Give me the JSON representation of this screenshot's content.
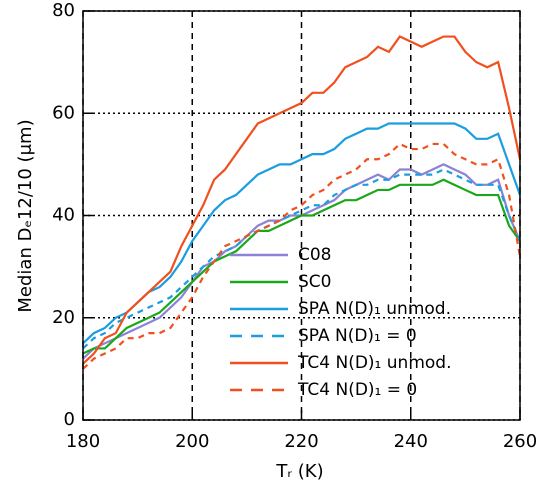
{
  "chart_data": {
    "type": "line",
    "xlabel": "Tᵣ (K)",
    "ylabel": "Median Dₑ12/10 (μm)",
    "x": [
      180,
      182,
      184,
      186,
      188,
      190,
      192,
      194,
      196,
      198,
      200,
      202,
      204,
      206,
      208,
      210,
      212,
      214,
      216,
      218,
      220,
      222,
      224,
      226,
      228,
      230,
      232,
      234,
      236,
      238,
      240,
      242,
      244,
      246,
      248,
      250,
      252,
      254,
      256,
      258,
      260
    ],
    "xlim": [
      180,
      260
    ],
    "xticks": [
      180,
      200,
      220,
      240,
      260
    ],
    "ylim": [
      0,
      80
    ],
    "yticks": [
      0,
      20,
      40,
      60,
      80
    ],
    "grid": {
      "x": "dashed",
      "y": "dotted"
    },
    "legend": "lower right",
    "series": [
      {
        "name": "C08",
        "color": "#8c82d6",
        "linestyle": "solid",
        "values": [
          12,
          14,
          15,
          16,
          17,
          18,
          19,
          20,
          22,
          24,
          27,
          30,
          31,
          33,
          34,
          36,
          38,
          39,
          39,
          40,
          40,
          41,
          42,
          43,
          45,
          46,
          47,
          48,
          47,
          49,
          49,
          48,
          49,
          50,
          49,
          48,
          46,
          46,
          47,
          40,
          35
        ]
      },
      {
        "name": "SC0",
        "color": "#1aa81a",
        "linestyle": "solid",
        "values": [
          13,
          14,
          14,
          16,
          18,
          19,
          20,
          21,
          23,
          25,
          27,
          29,
          31,
          32,
          33,
          35,
          37,
          37,
          38,
          39,
          40,
          40,
          41,
          42,
          43,
          43,
          44,
          45,
          45,
          46,
          46,
          46,
          46,
          47,
          46,
          45,
          44,
          44,
          44,
          38,
          35
        ]
      },
      {
        "name": "SPA N(D)₁ unmod.",
        "color": "#1a9ee0",
        "linestyle": "solid",
        "values": [
          15,
          17,
          18,
          20,
          21,
          23,
          25,
          26,
          28,
          31,
          35,
          38,
          41,
          43,
          44,
          46,
          48,
          49,
          50,
          50,
          51,
          52,
          52,
          53,
          55,
          56,
          57,
          57,
          58,
          58,
          58,
          58,
          58,
          58,
          58,
          57,
          55,
          55,
          56,
          50,
          44
        ]
      },
      {
        "name": "SPA N(D)₁ = 0",
        "color": "#1a9ee0",
        "linestyle": "dashed",
        "values": [
          14,
          16,
          17,
          19,
          20,
          21,
          22,
          23,
          24,
          26,
          28,
          30,
          32,
          33,
          34,
          36,
          37,
          38,
          39,
          40,
          41,
          42,
          42,
          44,
          45,
          46,
          46,
          47,
          47,
          48,
          48,
          48,
          48,
          49,
          48,
          47,
          46,
          46,
          46,
          40,
          35
        ]
      },
      {
        "name": "TC4 N(D)₁ unmod.",
        "color": "#f0501e",
        "linestyle": "solid",
        "values": [
          11,
          13,
          16,
          17,
          21,
          23,
          25,
          27,
          29,
          34,
          38,
          42,
          47,
          49,
          52,
          55,
          58,
          59,
          60,
          61,
          62,
          64,
          64,
          66,
          69,
          70,
          71,
          73,
          72,
          75,
          74,
          73,
          74,
          75,
          75,
          72,
          70,
          69,
          70,
          61,
          51
        ]
      },
      {
        "name": "TC4 N(D)₁ = 0",
        "color": "#f0501e",
        "linestyle": "dashed",
        "values": [
          10,
          12,
          13,
          14,
          16,
          16,
          17,
          17,
          18,
          21,
          24,
          28,
          31,
          34,
          35,
          36,
          37,
          38,
          39,
          41,
          42,
          44,
          45,
          47,
          48,
          49,
          51,
          51,
          52,
          54,
          53,
          53,
          54,
          54,
          52,
          51,
          50,
          50,
          51,
          44,
          32
        ]
      }
    ]
  }
}
